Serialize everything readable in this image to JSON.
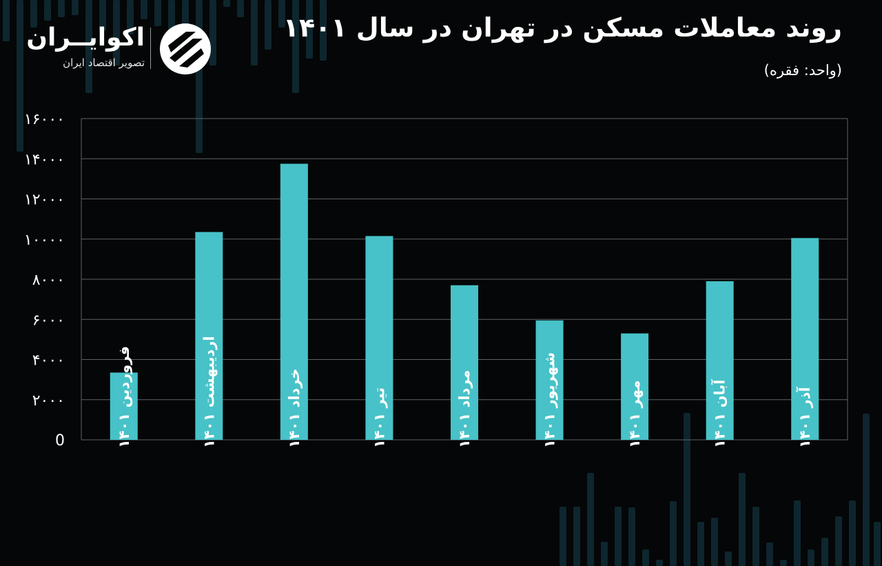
{
  "header": {
    "title": "روند معاملات مسکن در تهران در سال ۱۴۰۱",
    "subtitle": "(واحد: فقره)"
  },
  "logo": {
    "name": "اکوایــران",
    "tagline": "تصویر اقتصاد ایران"
  },
  "colors": {
    "background": "#050607",
    "bar": "#47c2c8",
    "grid": "#5f6366",
    "text": "#ffffff",
    "decoration": "#0f2a33"
  },
  "chart_data": {
    "type": "bar",
    "title": "روند معاملات مسکن در تهران در سال ۱۴۰۱",
    "subtitle": "(واحد: فقره)",
    "categories": [
      "فروردین ۱۴۰۱",
      "اردیبهشت ۱۴۰۱",
      "خرداد ۱۴۰۱",
      "تیر ۱۴۰۱",
      "مرداد ۱۴۰۱",
      "شهریور ۱۴۰۱",
      "مهر ۱۴۰۱",
      "آبان ۱۴۰۱",
      "آذر ۱۴۰۱"
    ],
    "values": [
      3350,
      10350,
      13750,
      10150,
      7700,
      5950,
      5300,
      7900,
      10050
    ],
    "yticks": [
      0,
      2000,
      4000,
      6000,
      8000,
      10000,
      12000,
      14000,
      16000
    ],
    "ytick_labels": [
      "0",
      "۲۰۰۰",
      "۴۰۰۰",
      "۶۰۰۰",
      "۸۰۰۰",
      "۱۰۰۰۰",
      "۱۲۰۰۰",
      "۱۴۰۰۰",
      "۱۶۰۰۰"
    ],
    "ylim": [
      0,
      16000
    ],
    "grid": true,
    "legend": "none"
  }
}
